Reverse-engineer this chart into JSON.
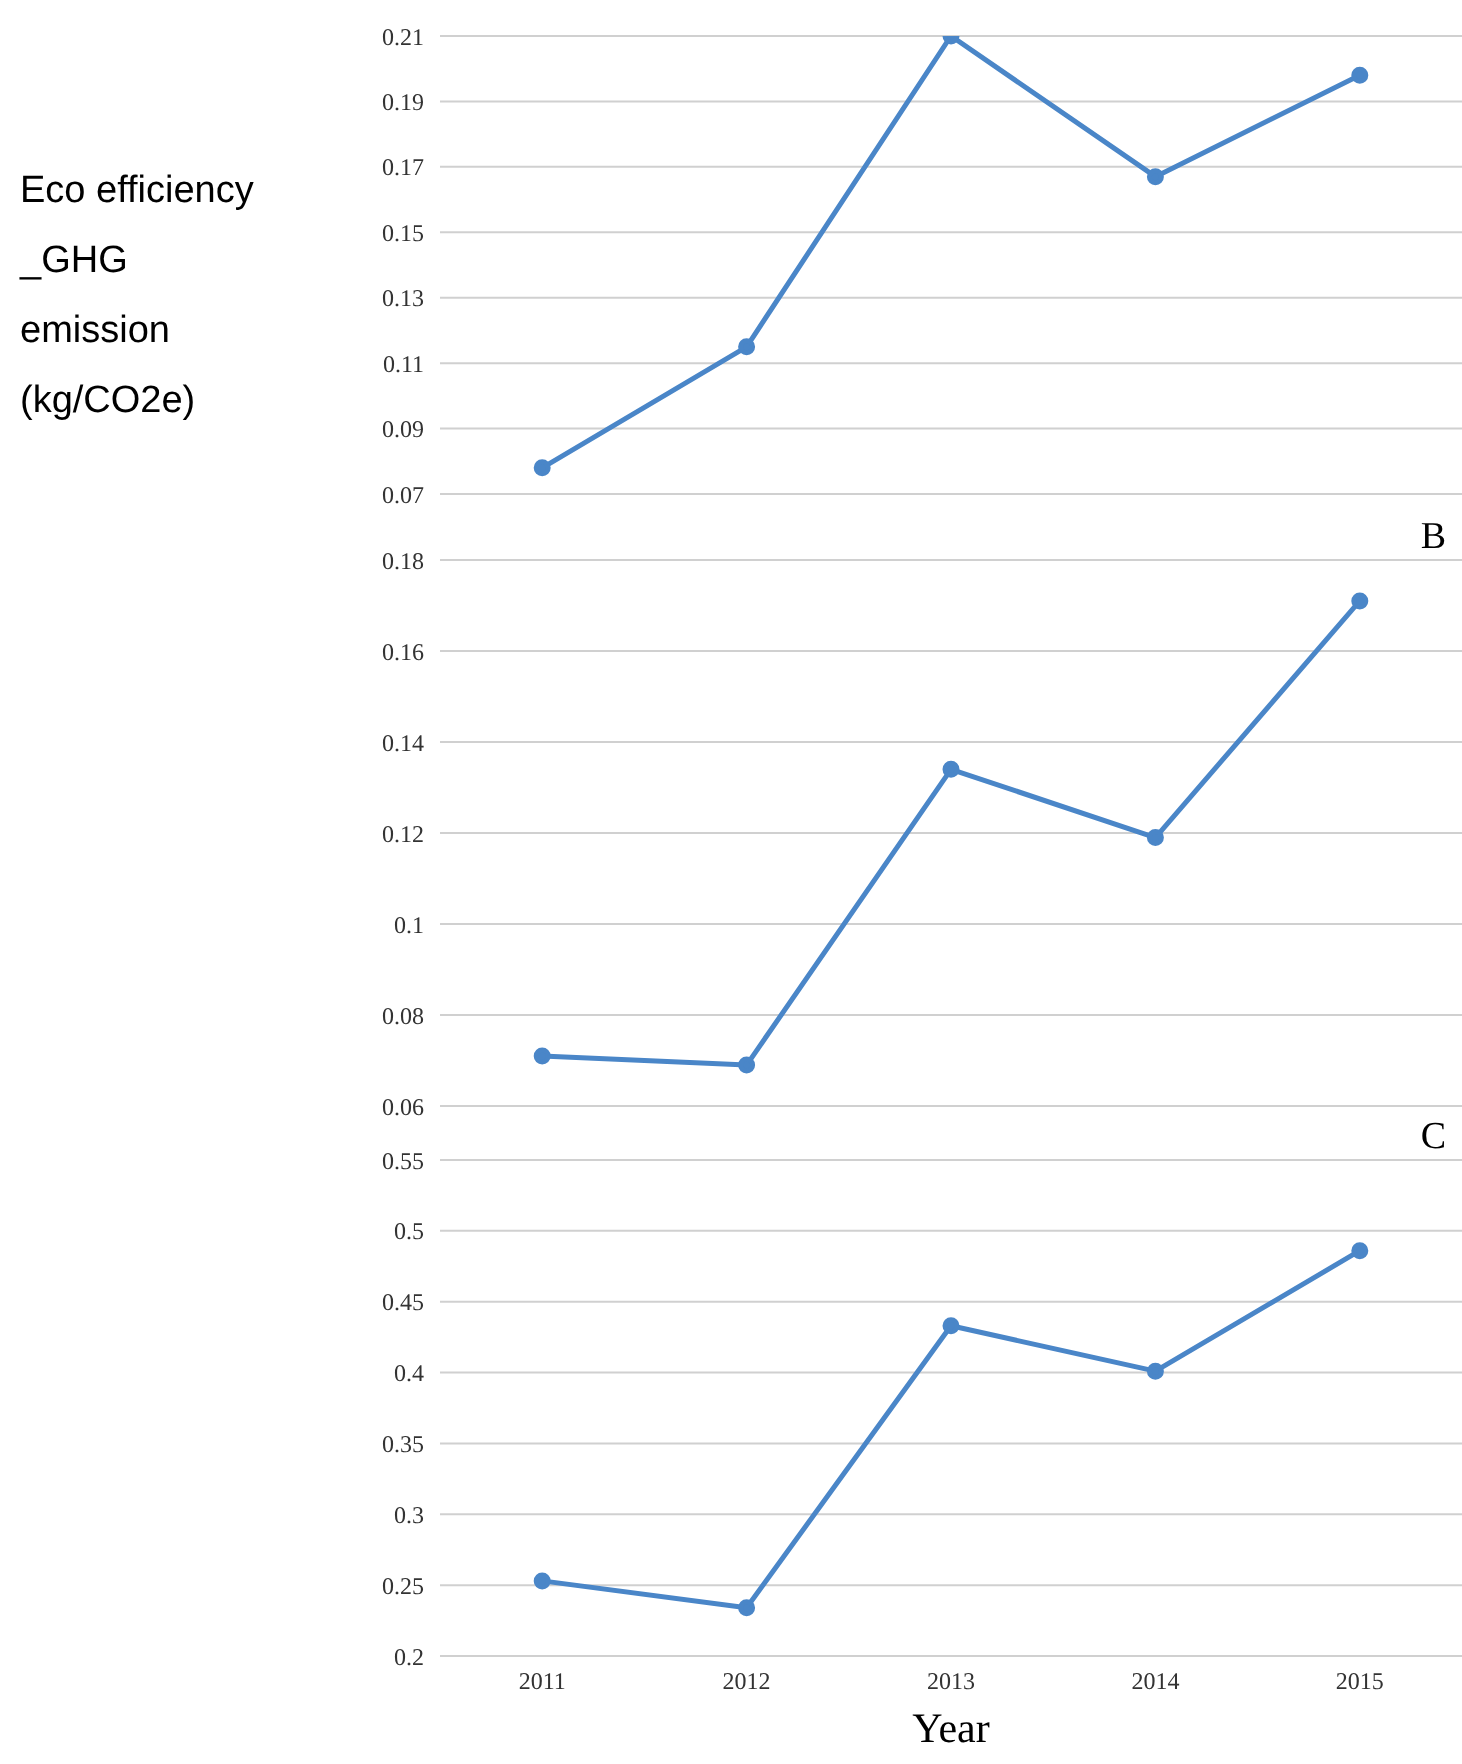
{
  "chart_data": [
    {
      "type": "line",
      "ylabel": "Eco efficiency _GHG emission (kg/CO2e)",
      "categories": [
        "2011",
        "2012",
        "2013",
        "2014",
        "2015"
      ],
      "values": [
        0.078,
        0.115,
        0.21,
        0.167,
        0.198
      ],
      "color": "#4a86c8",
      "ylim": [
        0.07,
        0.21
      ],
      "yticks": [
        0.07,
        0.09,
        0.11,
        0.13,
        0.15,
        0.17,
        0.19,
        0.21
      ],
      "grid": "y",
      "marker": "circle",
      "tick_labels": "y"
    },
    {
      "type": "line",
      "title": "B",
      "categories": [
        "2011",
        "2012",
        "2013",
        "2014",
        "2015"
      ],
      "values": [
        0.071,
        0.069,
        0.134,
        0.119,
        0.171
      ],
      "color": "#4a86c8",
      "ylim": [
        0.06,
        0.18
      ],
      "yticks": [
        0.06,
        0.08,
        0.1,
        0.12,
        0.14,
        0.16,
        0.18
      ],
      "grid": "y",
      "marker": "circle",
      "tick_labels": "y"
    },
    {
      "type": "line",
      "title": "C",
      "xlabel": "Year",
      "categories": [
        "2011",
        "2012",
        "2013",
        "2014",
        "2015"
      ],
      "values": [
        0.253,
        0.234,
        0.433,
        0.401,
        0.486
      ],
      "color": "#4a86c8",
      "ylim": [
        0.2,
        0.55
      ],
      "yticks": [
        0.2,
        0.25,
        0.3,
        0.35,
        0.4,
        0.45,
        0.5,
        0.55
      ],
      "grid": "y",
      "marker": "circle"
    }
  ]
}
